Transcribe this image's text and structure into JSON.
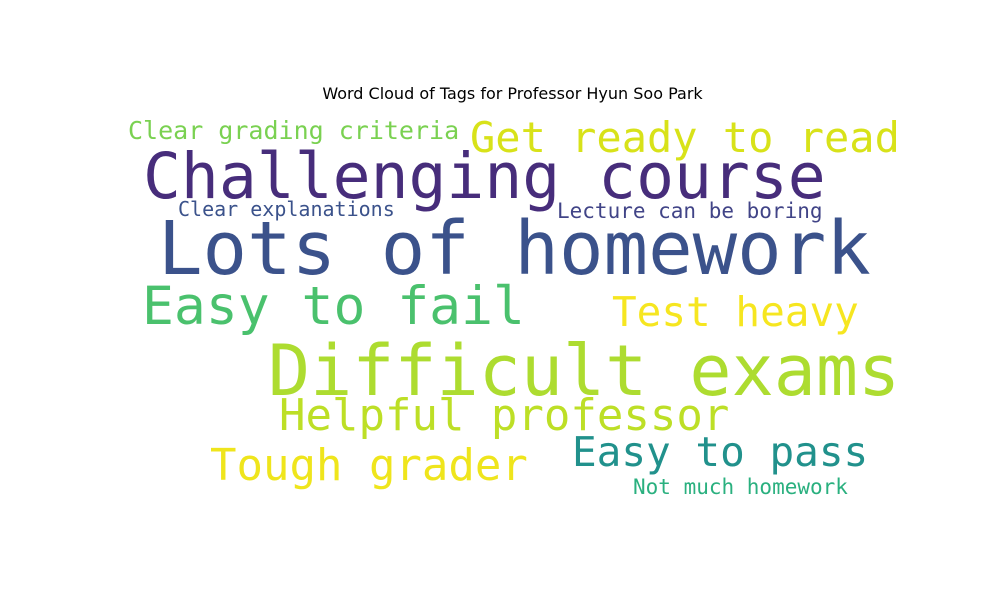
{
  "chart_data": {
    "type": "wordcloud",
    "title": "Word Cloud of Tags for Professor Hyun Soo Park",
    "words": [
      {
        "key": "lots",
        "text": "Lots of homework",
        "color": "#3b528b"
      },
      {
        "key": "difficult",
        "text": "Difficult exams",
        "color": "#addc30"
      },
      {
        "key": "challenge",
        "text": "Challenging course",
        "color": "#472d7b"
      },
      {
        "key": "easyfail",
        "text": "Easy to fail",
        "color": "#4ac16d"
      },
      {
        "key": "helpful",
        "text": "Helpful professor",
        "color": "#bddf26"
      },
      {
        "key": "tough",
        "text": "Tough grader",
        "color": "#efe51c"
      },
      {
        "key": "getready",
        "text": "Get ready to read",
        "color": "#d8e219"
      },
      {
        "key": "easypass",
        "text": "Easy to pass",
        "color": "#21918c"
      },
      {
        "key": "testheavy",
        "text": "Test heavy",
        "color": "#f6e620"
      },
      {
        "key": "grading",
        "text": "Clear grading criteria",
        "color": "#7ad151"
      },
      {
        "key": "lecture",
        "text": "Lecture can be boring",
        "color": "#414487"
      },
      {
        "key": "explain",
        "text": "Clear explanations",
        "color": "#3b528b"
      },
      {
        "key": "notmuch",
        "text": "Not much homework",
        "color": "#2ab07f"
      }
    ]
  }
}
